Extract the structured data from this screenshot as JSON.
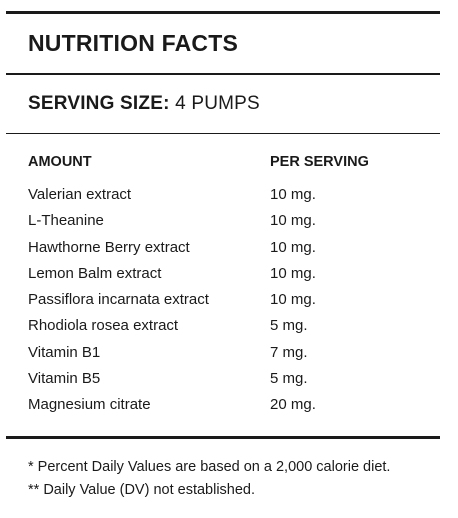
{
  "panel": {
    "title": "NUTRITION FACTS",
    "serving_label": "SERVING SIZE:",
    "serving_value": "4 PUMPS"
  },
  "table": {
    "columns": [
      "AMOUNT",
      "PER SERVING"
    ],
    "rows": [
      {
        "name": "Valerian extract",
        "amount": "10 mg."
      },
      {
        "name": "L-Theanine",
        "amount": "10 mg."
      },
      {
        "name": "Hawthorne Berry extract",
        "amount": "10 mg."
      },
      {
        "name": "Lemon Balm extract",
        "amount": "10 mg."
      },
      {
        "name": "Passiflora incarnata extract",
        "amount": "10 mg."
      },
      {
        "name": "Rhodiola rosea extract",
        "amount": "5 mg."
      },
      {
        "name": "Vitamin B1",
        "amount": "7 mg."
      },
      {
        "name": "Vitamin B5",
        "amount": "5 mg."
      },
      {
        "name": "Magnesium citrate",
        "amount": "20 mg."
      }
    ]
  },
  "footnotes": [
    "* Percent Daily Values are based on a 2,000 calorie diet.",
    "** Daily Value (DV) not established."
  ]
}
